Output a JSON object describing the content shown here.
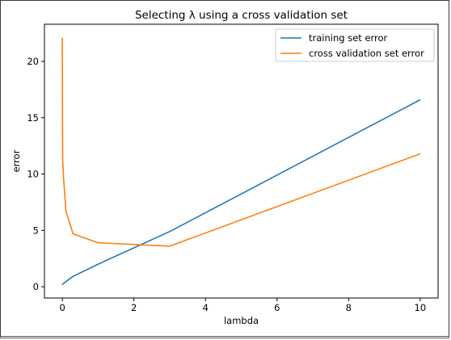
{
  "chart_data": {
    "type": "line",
    "title": "Selecting λ using a cross validation set",
    "xlabel": "lambda",
    "ylabel": "error",
    "xlim": [
      -0.5,
      10.5
    ],
    "ylim": [
      -1.0,
      23.3
    ],
    "xticks": [
      0,
      2,
      4,
      6,
      8,
      10
    ],
    "yticks": [
      0,
      5,
      10,
      15,
      20
    ],
    "grid": false,
    "legend_position": "top-right",
    "series": [
      {
        "name": "training set error",
        "color": "#1f77b4",
        "x": [
          0,
          0.001,
          0.003,
          0.01,
          0.03,
          0.1,
          0.3,
          1,
          3,
          10
        ],
        "y": [
          0.17,
          0.18,
          0.19,
          0.22,
          0.28,
          0.46,
          0.92,
          2.0,
          4.9,
          16.6
        ]
      },
      {
        "name": "cross validation set error",
        "color": "#ff7f0e",
        "x": [
          0,
          0.001,
          0.003,
          0.01,
          0.03,
          0.1,
          0.3,
          1,
          3,
          10
        ],
        "y": [
          22.1,
          19.0,
          15.0,
          11.2,
          9.8,
          6.7,
          4.7,
          3.9,
          3.6,
          11.8
        ]
      }
    ]
  }
}
